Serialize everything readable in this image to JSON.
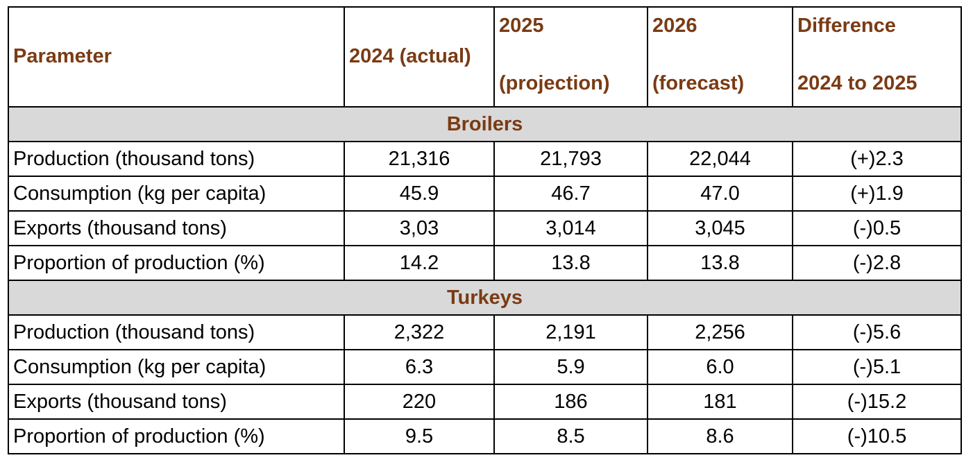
{
  "headers": {
    "parameter": "Parameter",
    "y2024": "2024 (actual)",
    "y2025_line1": "2025",
    "y2025_line2": "(projection)",
    "y2026_line1": "2026",
    "y2026_line2": "(forecast)",
    "diff_line1": "Difference",
    "diff_line2": "2024 to 2025"
  },
  "sections": [
    {
      "title": "Broilers",
      "rows": [
        [
          "Production (thousand tons)",
          "21,316",
          "21,793",
          "22,044",
          "(+)2.3"
        ],
        [
          "Consumption (kg per capita)",
          "45.9",
          "46.7",
          "47.0",
          "(+)1.9"
        ],
        [
          "Exports (thousand tons)",
          "3,03",
          "3,014",
          "3,045",
          "(-)0.5"
        ],
        [
          "Proportion of production (%)",
          "14.2",
          "13.8",
          "13.8",
          "(-)2.8"
        ]
      ]
    },
    {
      "title": "Turkeys",
      "rows": [
        [
          "Production (thousand tons)",
          "2,322",
          "2,191",
          "2,256",
          "(-)5.6"
        ],
        [
          "Consumption (kg per capita)",
          "6.3",
          "5.9",
          "6.0",
          "(-)5.1"
        ],
        [
          "Exports (thousand tons)",
          "220",
          "186",
          "181",
          "(-)15.2"
        ],
        [
          "Proportion of production (%)",
          "9.5",
          "8.5",
          "8.6",
          "(-)10.5"
        ]
      ]
    }
  ]
}
